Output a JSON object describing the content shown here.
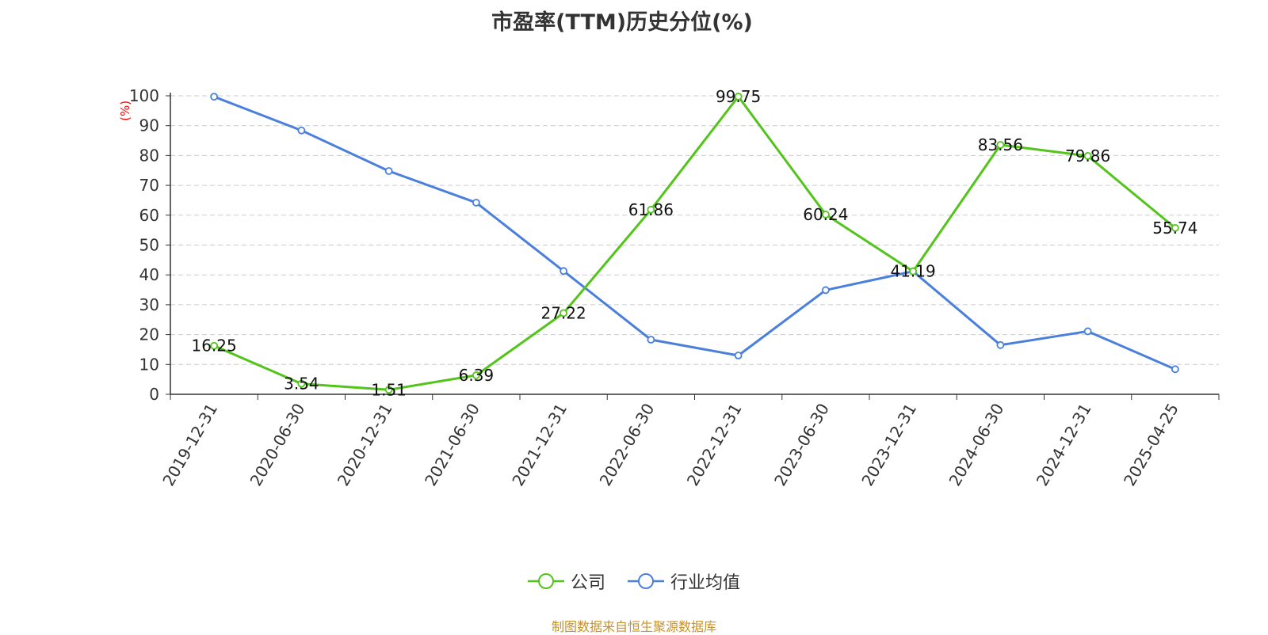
{
  "chart_data": {
    "type": "line",
    "title": "市盈率(TTM)历史分位(%)",
    "ylabel": "(%)",
    "xlabel": "",
    "ylim": [
      0,
      100
    ],
    "yticks": [
      0,
      10,
      20,
      30,
      40,
      50,
      60,
      70,
      80,
      90,
      100
    ],
    "categories": [
      "2019-12-31",
      "2020-06-30",
      "2020-12-31",
      "2021-06-30",
      "2021-12-31",
      "2022-06-30",
      "2022-12-31",
      "2023-06-30",
      "2023-12-31",
      "2024-06-30",
      "2024-12-31",
      "2025-04-25"
    ],
    "grid": true,
    "legend_position": "bottom",
    "series": [
      {
        "name": "公司",
        "color": "#52c41a",
        "values": [
          16.25,
          3.54,
          1.51,
          6.39,
          27.22,
          61.86,
          99.75,
          60.24,
          41.19,
          83.56,
          79.86,
          55.74
        ],
        "labels": [
          "16.25",
          "3.54",
          "1.51",
          "6.39",
          "27.22",
          "61.86",
          "99.75",
          "60.24",
          "41.19",
          "83.56",
          "79.86",
          "55.74"
        ]
      },
      {
        "name": "行业均值",
        "color": "#4a7fdc",
        "values": [
          99.7,
          88.4,
          74.8,
          64.2,
          41.3,
          18.3,
          13.0,
          34.9,
          41.2,
          16.5,
          21.1,
          8.4
        ]
      }
    ]
  },
  "footer": {
    "source": "制图数据来自恒生聚源数据库"
  }
}
